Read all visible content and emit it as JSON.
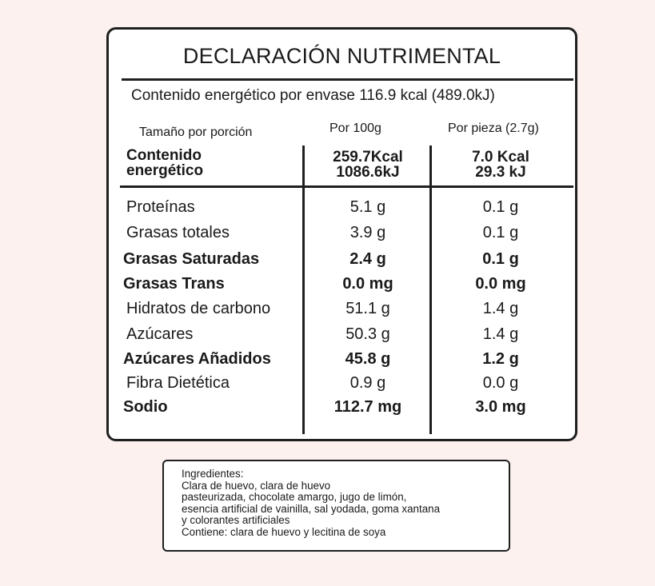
{
  "title": "DECLARACIÓN NUTRIMENTAL",
  "energy_per_package": "Contenido energético por envase 116.9 kcal (489.0kJ)",
  "headers": {
    "serving": "Tamaño por porción",
    "per100": "Por 100g",
    "perpiece": "Por pieza (2.7g)"
  },
  "energy": {
    "label_line1": "Contenido",
    "label_line2": "energético",
    "per100_kcal": "259.7Kcal",
    "per100_kj": "1086.6kJ",
    "perpiece_kcal": "7.0 Kcal",
    "perpiece_kj": "29.3 kJ"
  },
  "rows": [
    {
      "label": "Proteínas",
      "per100": "5.1 g",
      "perpiece": "0.1 g"
    },
    {
      "label": "Grasas totales",
      "per100": "3.9 g",
      "perpiece": "0.1 g"
    },
    {
      "label": "Grasas Saturadas",
      "per100": "2.4 g",
      "perpiece": "0.1 g"
    },
    {
      "label": "Grasas Trans",
      "per100": "0.0 mg",
      "perpiece": "0.0 mg"
    },
    {
      "label": "Hidratos de carbono",
      "per100": "51.1 g",
      "perpiece": "1.4 g"
    },
    {
      "label": "Azúcares",
      "per100": "50.3 g",
      "perpiece": "1.4 g"
    },
    {
      "label": "Azúcares Añadidos",
      "per100": "45.8 g",
      "perpiece": "1.2 g"
    },
    {
      "label": "Fibra Dietética",
      "per100": "0.9 g",
      "perpiece": "0.0 g"
    },
    {
      "label": "Sodio",
      "per100": "112.7 mg",
      "perpiece": "3.0 mg"
    }
  ],
  "ingredients": {
    "heading": "Ingredientes:",
    "line1": "Clara de huevo, clara de huevo",
    "line2": "pasteurizada, chocolate amargo, jugo de limón,",
    "line3": "esencia artificial de vainilla, sal yodada, goma xantana",
    "line4": "y colorantes artificiales",
    "contains": "Contiene: clara de huevo y lecitina de soya"
  }
}
